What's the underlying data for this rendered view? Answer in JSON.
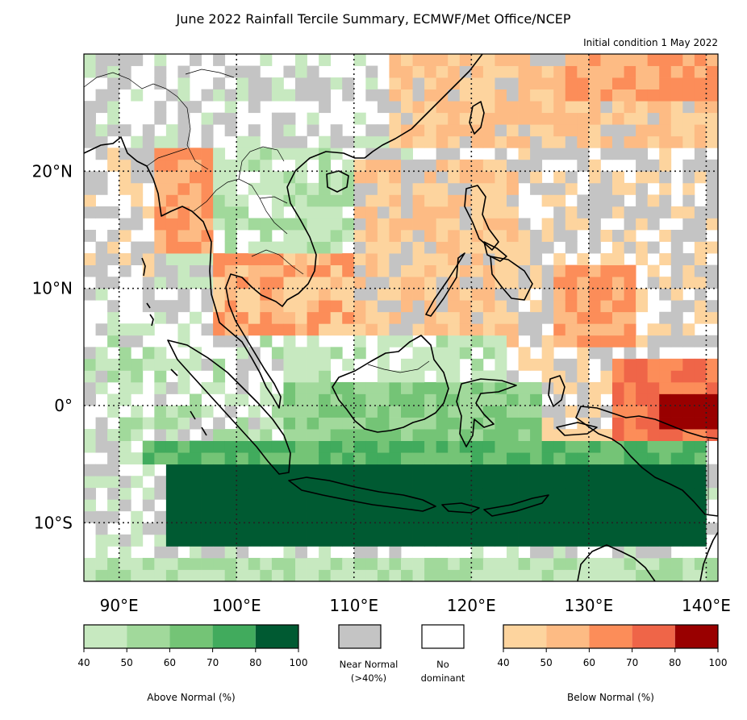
{
  "title": "June 2022 Rainfall Tercile Summary, ECMWF/Met Office/NCEP",
  "subtitle": "Initial condition 1 May 2022",
  "map": {
    "lon_range": [
      87,
      141
    ],
    "lat_range": [
      -15,
      30
    ],
    "lon_ticks": [
      {
        "value": 90,
        "label": "90°E"
      },
      {
        "value": 100,
        "label": "100°E"
      },
      {
        "value": 110,
        "label": "110°E"
      },
      {
        "value": 120,
        "label": "120°E"
      },
      {
        "value": 130,
        "label": "130°E"
      },
      {
        "value": 140,
        "label": "140°E"
      }
    ],
    "lat_ticks": [
      {
        "value": 20,
        "label": "20°N"
      },
      {
        "value": 10,
        "label": "10°N"
      },
      {
        "value": 0,
        "label": "0°"
      },
      {
        "value": -10,
        "label": "10°S"
      }
    ],
    "gridlines": true,
    "colors": {
      "above": [
        "#c7e9c0",
        "#a1d99b",
        "#74c476",
        "#41ab5d",
        "#005a32"
      ],
      "below": [
        "#fdd49e",
        "#fdbb84",
        "#fc8d59",
        "#ef6548",
        "#990000"
      ],
      "near_normal": "#c4c4c4",
      "no_dominant": "#ffffff",
      "land_outline": "#000000"
    }
  },
  "legends": {
    "above": {
      "ticks": [
        "40",
        "50",
        "60",
        "70",
        "80",
        "100"
      ],
      "label": "Above Normal (%)"
    },
    "near_normal": {
      "label_line1": "Near Normal",
      "label_line2": "(>40%)"
    },
    "no_dominant": {
      "label_line1": "No",
      "label_line2": "dominant"
    },
    "below": {
      "ticks": [
        "40",
        "50",
        "60",
        "70",
        "80",
        "100"
      ],
      "label": "Below Normal (%)"
    }
  }
}
